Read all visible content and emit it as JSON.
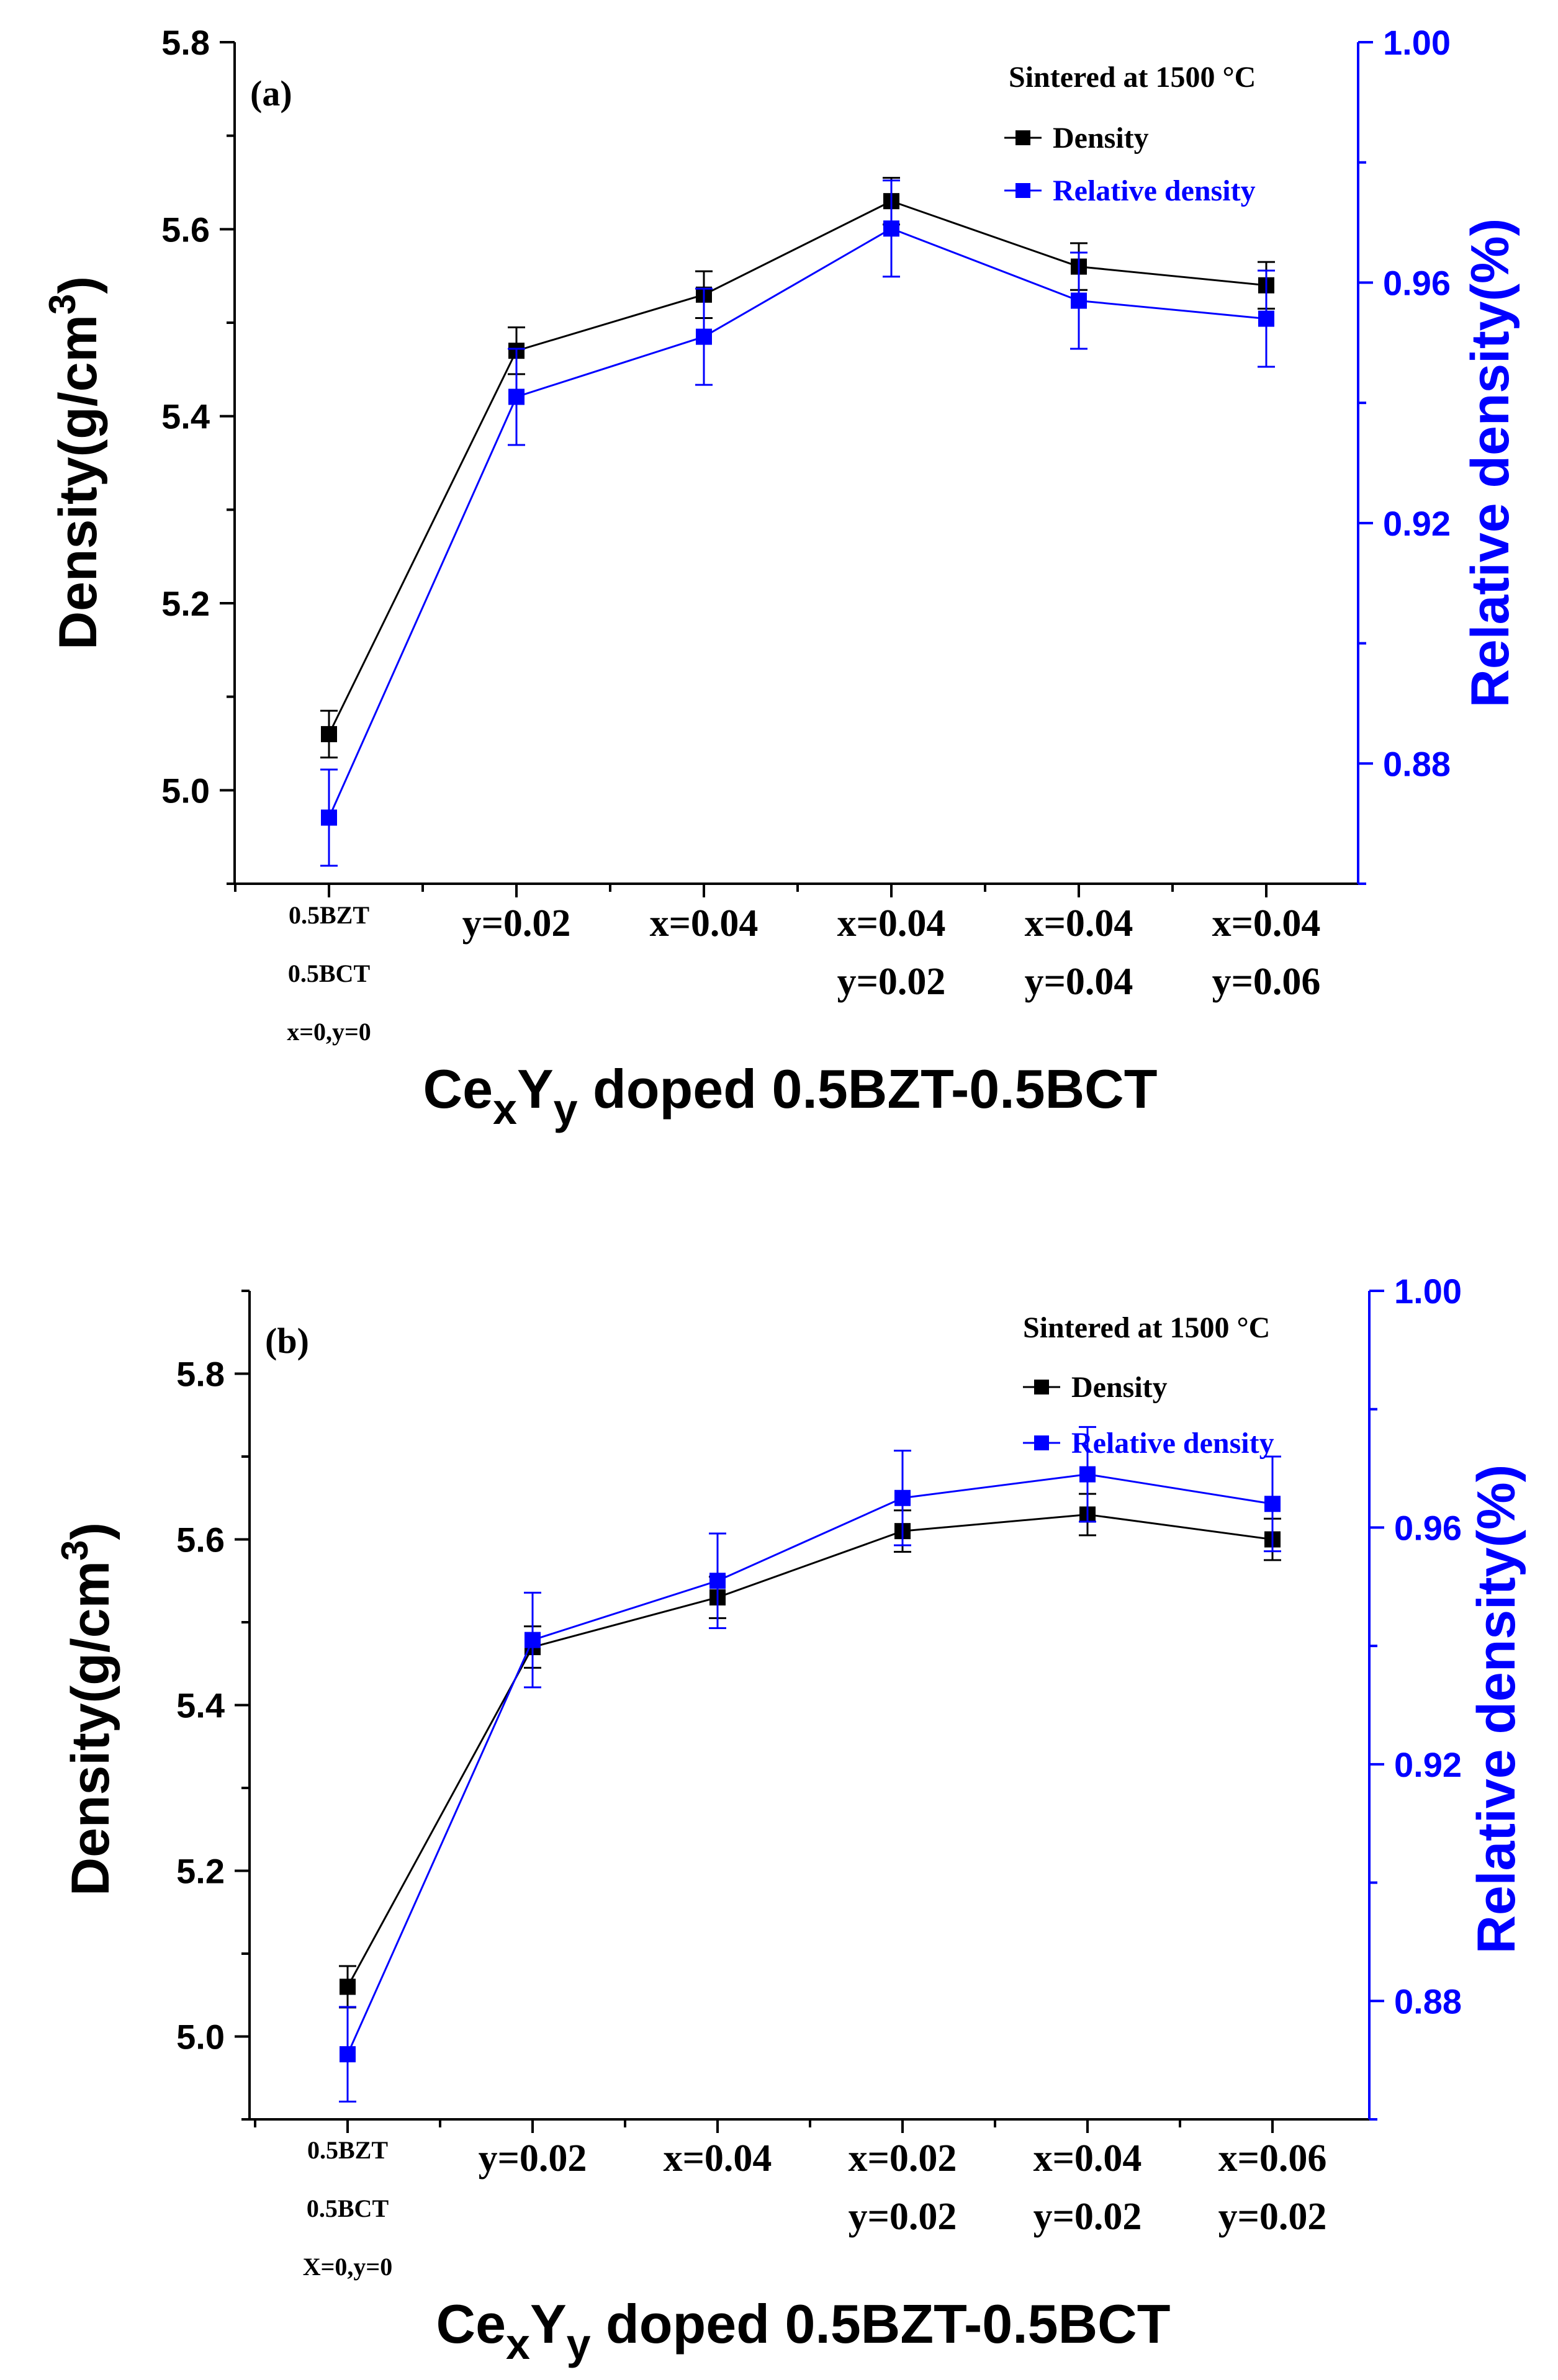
{
  "chart_data": [
    {
      "type": "line",
      "panel_label": "(a)",
      "annotation": "Sintered at 1500 °C",
      "xlabel": {
        "base1": "Ce",
        "sub1": "x",
        "base2": "Y",
        "sub2": "y",
        "rest": " doped 0.5BZT-0.5BCT"
      },
      "ylabel": {
        "base": "Density(g/cm",
        "sup": "3",
        "end": ")"
      },
      "y2label": "Relative density(%)",
      "ylim": [
        4.9,
        5.8
      ],
      "y2lim": [
        0.86,
        1.0
      ],
      "yticks": [
        "5.0",
        "5.2",
        "5.4",
        "5.6",
        "5.8"
      ],
      "y2ticks": [
        "0.88",
        "0.92",
        "0.96",
        "1.00"
      ],
      "categories": [
        [
          "0.5BZT",
          "0.5BCT",
          "x=0,y=0"
        ],
        [
          "y=0.02"
        ],
        [
          "x=0.04"
        ],
        [
          "x=0.04",
          "y=0.02"
        ],
        [
          "x=0.04",
          "y=0.04"
        ],
        [
          "x=0.04",
          "y=0.06"
        ]
      ],
      "series": [
        {
          "name": "Density",
          "axis": "left",
          "color": "#000000",
          "values": [
            5.06,
            5.47,
            5.53,
            5.63,
            5.56,
            5.54
          ],
          "error": [
            0.025,
            0.025,
            0.025,
            0.025,
            0.025,
            0.025
          ]
        },
        {
          "name": "Relative density",
          "axis": "right",
          "color": "#0000ff",
          "values": [
            0.871,
            0.941,
            0.951,
            0.969,
            0.957,
            0.954
          ],
          "error": [
            0.008,
            0.008,
            0.008,
            0.008,
            0.008,
            0.008
          ]
        }
      ]
    },
    {
      "type": "line",
      "panel_label": "(b)",
      "annotation": "Sintered at 1500 °C",
      "xlabel": {
        "base1": "Ce",
        "sub1": "x",
        "base2": "Y",
        "sub2": "y",
        "rest": " doped 0.5BZT-0.5BCT"
      },
      "ylabel": {
        "base": "Density(g/cm",
        "sup": "3",
        "end": ")"
      },
      "y2label": "Relative density(%)",
      "ylim": [
        4.9,
        5.9
      ],
      "y2lim": [
        0.86,
        1.0
      ],
      "yticks": [
        "5.0",
        "5.2",
        "5.4",
        "5.6",
        "5.8"
      ],
      "y2ticks": [
        "0.88",
        "0.92",
        "0.96",
        "1.00"
      ],
      "categories": [
        [
          "0.5BZT",
          "0.5BCT",
          "X=0,y=0"
        ],
        [
          "y=0.02"
        ],
        [
          "x=0.04"
        ],
        [
          "x=0.02",
          "y=0.02"
        ],
        [
          "x=0.04",
          "y=0.02"
        ],
        [
          "x=0.06",
          "y=0.02"
        ]
      ],
      "series": [
        {
          "name": "Density",
          "axis": "left",
          "color": "#000000",
          "values": [
            5.06,
            5.47,
            5.53,
            5.61,
            5.63,
            5.6
          ],
          "error": [
            0.025,
            0.025,
            0.025,
            0.025,
            0.025,
            0.025
          ]
        },
        {
          "name": "Relative density",
          "axis": "right",
          "color": "#0000ff",
          "values": [
            0.871,
            0.941,
            0.951,
            0.965,
            0.969,
            0.964
          ],
          "error": [
            0.008,
            0.008,
            0.008,
            0.008,
            0.008,
            0.008
          ]
        }
      ]
    }
  ]
}
